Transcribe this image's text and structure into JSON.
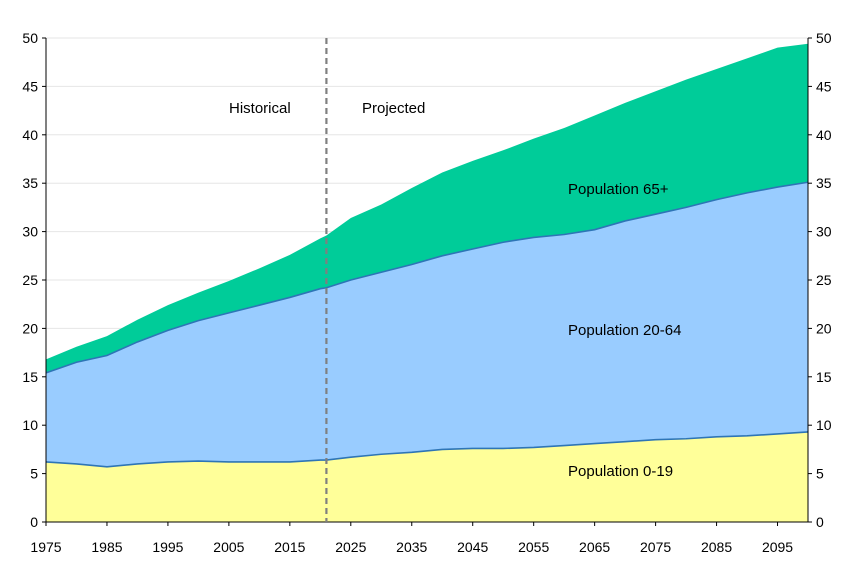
{
  "chart_data": {
    "type": "area",
    "stacked": true,
    "xlim": [
      1975,
      2100
    ],
    "ylim": [
      0,
      50
    ],
    "y_ticks": [
      0,
      5,
      10,
      15,
      20,
      25,
      30,
      35,
      40,
      45,
      50
    ],
    "x_ticks": [
      1975,
      1985,
      1995,
      2005,
      2015,
      2025,
      2035,
      2045,
      2055,
      2065,
      2075,
      2085,
      2095
    ],
    "grid": true,
    "x": [
      1975,
      1980,
      1985,
      1990,
      1995,
      2000,
      2005,
      2010,
      2015,
      2020,
      2021,
      2025,
      2030,
      2035,
      2040,
      2045,
      2050,
      2055,
      2060,
      2065,
      2070,
      2075,
      2080,
      2085,
      2090,
      2095,
      2100
    ],
    "series": [
      {
        "name": "Population 0-19",
        "color": "#ffff99",
        "values": [
          6.2,
          6.0,
          5.7,
          6.0,
          6.2,
          6.3,
          6.2,
          6.2,
          6.2,
          6.4,
          6.4,
          6.7,
          7.0,
          7.2,
          7.5,
          7.6,
          7.6,
          7.7,
          7.9,
          8.1,
          8.3,
          8.5,
          8.6,
          8.8,
          8.9,
          9.1,
          9.3
        ]
      },
      {
        "name": "Population 20-64",
        "color": "#99ccff",
        "values": [
          9.2,
          10.5,
          11.5,
          12.6,
          13.6,
          14.5,
          15.4,
          16.2,
          17.0,
          17.7,
          17.8,
          18.3,
          18.8,
          19.4,
          20.0,
          20.6,
          21.3,
          21.7,
          21.8,
          22.1,
          22.8,
          23.3,
          23.9,
          24.5,
          25.1,
          25.5,
          25.8
        ]
      },
      {
        "name": "Population 65+",
        "color": "#00cc99",
        "values": [
          1.4,
          1.6,
          2.0,
          2.3,
          2.6,
          2.9,
          3.3,
          3.8,
          4.4,
          5.2,
          5.4,
          6.4,
          7.0,
          7.9,
          8.6,
          9.1,
          9.5,
          10.2,
          11.0,
          11.8,
          12.2,
          12.7,
          13.2,
          13.5,
          13.9,
          14.4,
          14.3
        ]
      }
    ],
    "divider_x": 2021,
    "annotations": {
      "historical": "Historical",
      "projected": "Projected"
    }
  }
}
